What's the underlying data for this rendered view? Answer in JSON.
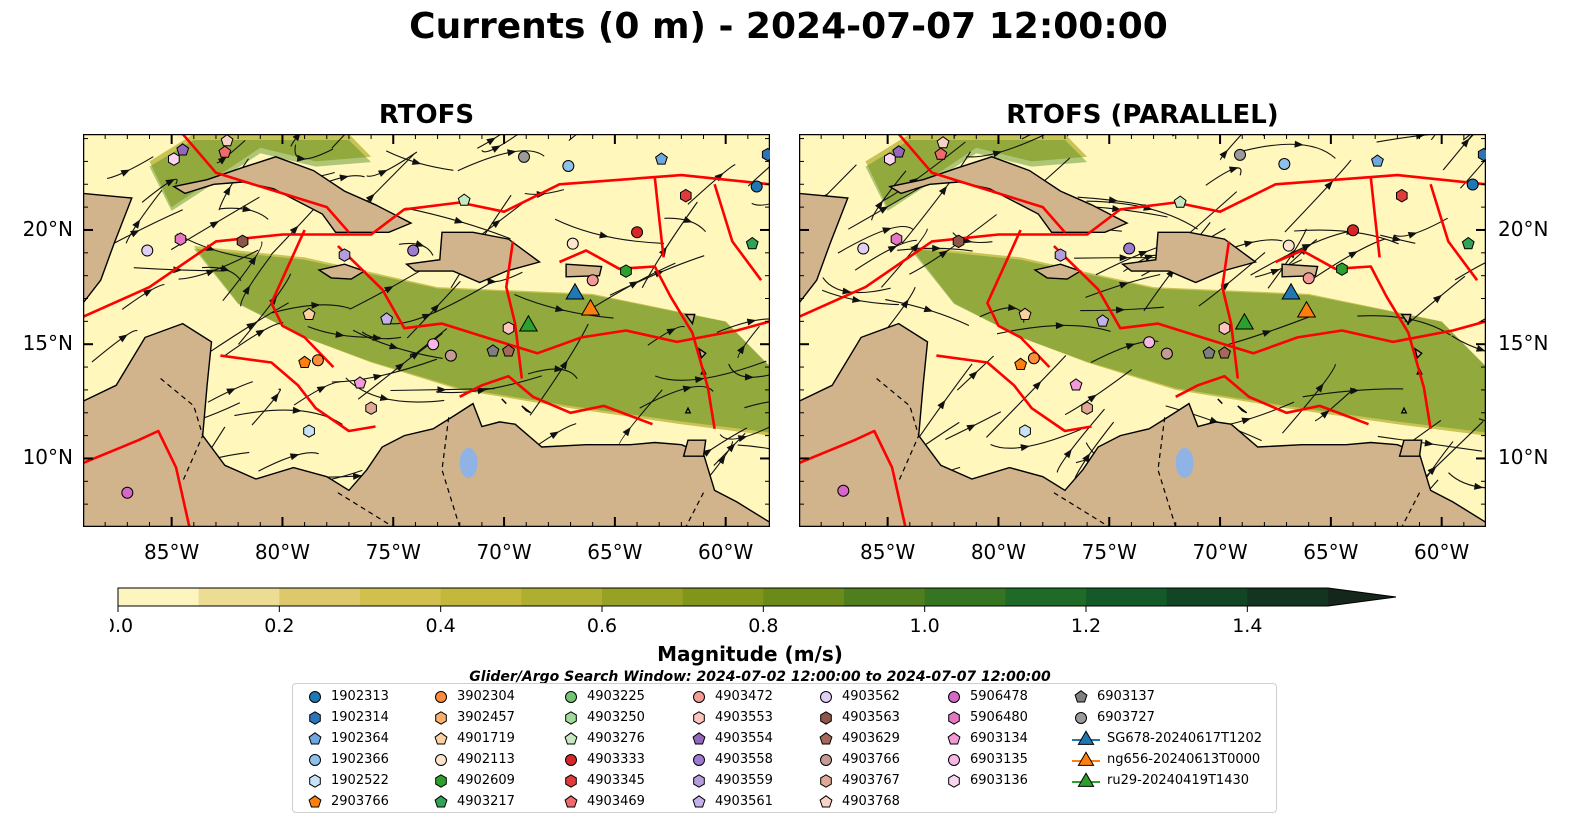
{
  "title": "Currents (0 m) - 2024-07-07 12:00:00",
  "panels": [
    {
      "title": "RTOFS"
    },
    {
      "title": "RTOFS (PARALLEL)"
    }
  ],
  "map": {
    "lon_range": [
      -89,
      -58
    ],
    "lat_range": [
      7,
      24.2
    ],
    "lon_ticks": [
      "85°W",
      "80°W",
      "75°W",
      "70°W",
      "65°W",
      "60°W"
    ],
    "lon_tick_values": [
      -85,
      -80,
      -75,
      -70,
      -65,
      -60
    ],
    "lat_ticks": [
      "20°N",
      "15°N",
      "10°N"
    ],
    "lat_tick_values": [
      20,
      15,
      10
    ],
    "land_color": "#d2b48c",
    "ocean_low_color": "#fff7bc",
    "boundary_color": "#ff0000"
  },
  "colorbar": {
    "label": "Magnitude (m/s)",
    "range": [
      0.0,
      1.5
    ],
    "tick_labels": [
      "0.0",
      "0.2",
      "0.4",
      "0.6",
      "0.8",
      "1.0",
      "1.2",
      "1.4"
    ],
    "tick_values": [
      0.0,
      0.2,
      0.4,
      0.6,
      0.8,
      1.0,
      1.2,
      1.4
    ],
    "colors": [
      "#fcf5bf",
      "#ecdc94",
      "#ddc96c",
      "#d2c04e",
      "#c3b83c",
      "#aeae30",
      "#97a224",
      "#81951a",
      "#6a8a1a",
      "#4e7e1e",
      "#357522",
      "#1f6a26",
      "#135a28",
      "#114523",
      "#123420",
      "#15261a"
    ],
    "extend": "max"
  },
  "search_window": "Glider/Argo Search Window: 2024-07-02 12:00:00 to 2024-07-07 12:00:00",
  "legend": {
    "columns": [
      [
        {
          "label": "1902313",
          "marker": "circle",
          "color": "#1f77b4"
        },
        {
          "label": "1902314",
          "marker": "hexagon",
          "color": "#2c74b7"
        },
        {
          "label": "1902364",
          "marker": "pentagon",
          "color": "#6fa8dc"
        },
        {
          "label": "1902366",
          "marker": "circle",
          "color": "#8ec1ea"
        },
        {
          "label": "1902522",
          "marker": "hexagon",
          "color": "#c6e4f6"
        },
        {
          "label": "2903766",
          "marker": "pentagon",
          "color": "#ff7f0e"
        }
      ],
      [
        {
          "label": "3902304",
          "marker": "circle",
          "color": "#fd8d3c"
        },
        {
          "label": "3902457",
          "marker": "hexagon",
          "color": "#fdae6b"
        },
        {
          "label": "4901719",
          "marker": "pentagon",
          "color": "#fdd0a2"
        },
        {
          "label": "4902113",
          "marker": "circle",
          "color": "#fee6ce"
        },
        {
          "label": "4902609",
          "marker": "hexagon",
          "color": "#2ca02c"
        },
        {
          "label": "4903217",
          "marker": "pentagon",
          "color": "#31a354"
        }
      ],
      [
        {
          "label": "4903225",
          "marker": "circle",
          "color": "#74c476"
        },
        {
          "label": "4903250",
          "marker": "hexagon",
          "color": "#a1d99b"
        },
        {
          "label": "4903276",
          "marker": "pentagon",
          "color": "#c7e9c0"
        },
        {
          "label": "4903333",
          "marker": "circle",
          "color": "#d62728"
        },
        {
          "label": "4903345",
          "marker": "hexagon",
          "color": "#de3b3b"
        },
        {
          "label": "4903469",
          "marker": "pentagon",
          "color": "#ef6b6b"
        }
      ],
      [
        {
          "label": "4903472",
          "marker": "circle",
          "color": "#f29b96"
        },
        {
          "label": "4903553",
          "marker": "hexagon",
          "color": "#fcc5c0"
        },
        {
          "label": "4903554",
          "marker": "pentagon",
          "color": "#9467bd"
        },
        {
          "label": "4903558",
          "marker": "circle",
          "color": "#9e7ad0"
        },
        {
          "label": "4903559",
          "marker": "hexagon",
          "color": "#b39ddb"
        },
        {
          "label": "4903561",
          "marker": "pentagon",
          "color": "#c5b0ea"
        }
      ],
      [
        {
          "label": "4903562",
          "marker": "circle",
          "color": "#e0cff5"
        },
        {
          "label": "4903563",
          "marker": "hexagon",
          "color": "#8c564b"
        },
        {
          "label": "4903629",
          "marker": "pentagon",
          "color": "#a6685a"
        },
        {
          "label": "4903766",
          "marker": "circle",
          "color": "#c49c94"
        },
        {
          "label": "4903767",
          "marker": "hexagon",
          "color": "#e0a996"
        },
        {
          "label": "4903768",
          "marker": "pentagon",
          "color": "#f6d3c6"
        }
      ],
      [
        {
          "label": "5906478",
          "marker": "circle",
          "color": "#d667c7"
        },
        {
          "label": "5906480",
          "marker": "hexagon",
          "color": "#e377c2"
        },
        {
          "label": "6903134",
          "marker": "pentagon",
          "color": "#f29ad8"
        },
        {
          "label": "6903135",
          "marker": "circle",
          "color": "#f7b6e3"
        },
        {
          "label": "6903136",
          "marker": "hexagon",
          "color": "#fbd4ef"
        }
      ],
      [
        {
          "label": "6903137",
          "marker": "pentagon",
          "color": "#7f7f7f"
        },
        {
          "label": "6903727",
          "marker": "circle",
          "color": "#9a9a9a"
        },
        {
          "label": "SG678-20240617T1202",
          "marker": "triangle-line",
          "color": "#1f77b4"
        },
        {
          "label": "ng656-20240613T0000",
          "marker": "triangle-line",
          "color": "#ff7f0e"
        },
        {
          "label": "ru29-20240419T1430",
          "marker": "triangle-line",
          "color": "#2ca02c"
        }
      ]
    ]
  },
  "platforms": [
    {
      "id": "1902313",
      "lon": -58.6,
      "lat": 21.9
    },
    {
      "id": "1902314",
      "lon": -58.1,
      "lat": 23.3
    },
    {
      "id": "1902364",
      "lon": -62.9,
      "lat": 23.1
    },
    {
      "id": "1902366",
      "lon": -67.1,
      "lat": 22.8
    },
    {
      "id": "1902522",
      "lon": -78.8,
      "lat": 11.2
    },
    {
      "id": "2903766",
      "lon": -79.0,
      "lat": 14.2
    },
    {
      "id": "3902304",
      "lon": -78.4,
      "lat": 14.3
    },
    {
      "id": "4901719",
      "lon": -78.8,
      "lat": 16.3
    },
    {
      "id": "4902113",
      "lon": -66.9,
      "lat": 19.4
    },
    {
      "id": "4902609",
      "lon": -64.5,
      "lat": 18.2
    },
    {
      "id": "4903217",
      "lon": -58.8,
      "lat": 19.4
    },
    {
      "id": "4903276",
      "lon": -71.8,
      "lat": 21.3
    },
    {
      "id": "4903333",
      "lon": -64.0,
      "lat": 19.9
    },
    {
      "id": "4903345",
      "lon": -61.8,
      "lat": 21.5
    },
    {
      "id": "4903469",
      "lon": -82.6,
      "lat": 23.4
    },
    {
      "id": "4903472",
      "lon": -66.0,
      "lat": 17.8
    },
    {
      "id": "4903553",
      "lon": -69.8,
      "lat": 15.7
    },
    {
      "id": "4903554",
      "lon": -84.5,
      "lat": 23.5
    },
    {
      "id": "4903558",
      "lon": -74.1,
      "lat": 19.1
    },
    {
      "id": "4903559",
      "lon": -77.2,
      "lat": 18.9
    },
    {
      "id": "4903561",
      "lon": -75.3,
      "lat": 16.1
    },
    {
      "id": "4903562",
      "lon": -86.1,
      "lat": 19.1
    },
    {
      "id": "4903563",
      "lon": -81.8,
      "lat": 19.5
    },
    {
      "id": "4903629",
      "lon": -69.8,
      "lat": 14.7
    },
    {
      "id": "4903766",
      "lon": -72.4,
      "lat": 14.5
    },
    {
      "id": "4903767",
      "lon": -76.0,
      "lat": 12.2
    },
    {
      "id": "4903768",
      "lon": -82.5,
      "lat": 23.9
    },
    {
      "id": "5906478",
      "lon": -87.0,
      "lat": 8.5
    },
    {
      "id": "5906480",
      "lon": -84.6,
      "lat": 19.6
    },
    {
      "id": "6903134",
      "lon": -76.5,
      "lat": 13.3
    },
    {
      "id": "6903135",
      "lon": -73.2,
      "lat": 15.0
    },
    {
      "id": "6903136",
      "lon": -84.9,
      "lat": 23.1
    },
    {
      "id": "6903137",
      "lon": -70.5,
      "lat": 14.7
    },
    {
      "id": "6903727",
      "lon": -69.1,
      "lat": 23.2
    },
    {
      "id": "SG678-20240617T1202",
      "lon": -66.8,
      "lat": 17.2
    },
    {
      "id": "ng656-20240613T0000",
      "lon": -66.1,
      "lat": 16.5
    },
    {
      "id": "ru29-20240419T1430",
      "lon": -68.9,
      "lat": 15.8
    }
  ]
}
